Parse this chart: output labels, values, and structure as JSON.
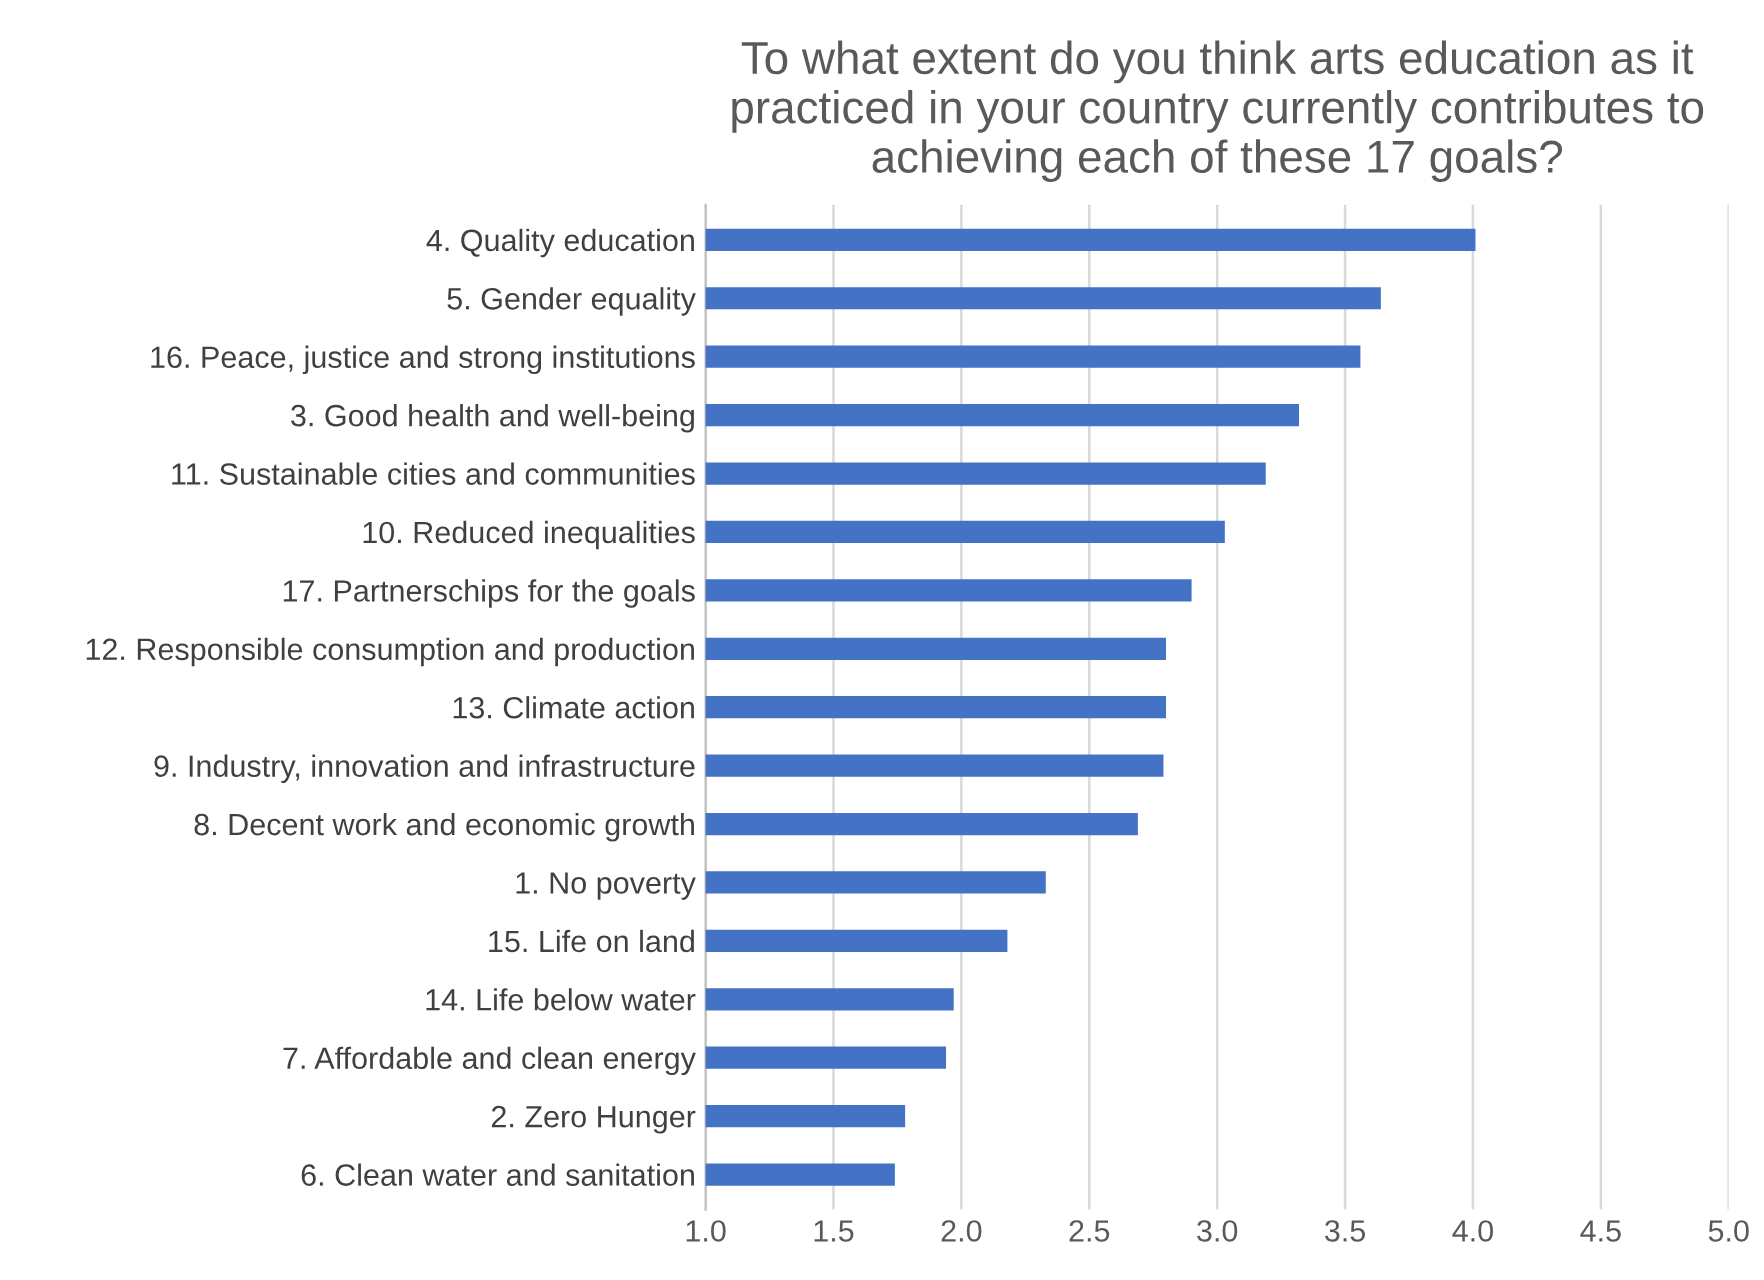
{
  "chart_data": {
    "type": "bar",
    "orientation": "horizontal",
    "title": "To what extent do you think arts education as it practiced in your country currently contributes to achieving each of these 17 goals?",
    "categories": [
      "4. Quality education",
      "5. Gender equality",
      "16. Peace, justice and strong institutions",
      "3. Good health and well-being",
      "11. Sustainable cities and communities",
      "10. Reduced inequalities",
      "17. Partnerschips for the goals",
      "12. Responsible consumption and production",
      "13. Climate action",
      "9. Industry, innovation and infrastructure",
      "8. Decent work and economic growth",
      "1. No poverty",
      "15. Life on land",
      "14. Life below water",
      "7. Affordable and clean energy",
      "2. Zero Hunger",
      "6. Clean water and sanitation"
    ],
    "values": [
      4.01,
      3.64,
      3.56,
      3.32,
      3.19,
      3.03,
      2.9,
      2.8,
      2.8,
      2.79,
      2.69,
      2.33,
      2.18,
      1.97,
      1.94,
      1.78,
      1.74
    ],
    "color": "#4472c4",
    "xlim": [
      1,
      5
    ],
    "xticks": [
      {
        "value": 1,
        "label": "1.0"
      },
      {
        "value": 1.5,
        "label": "1.5"
      },
      {
        "value": 2,
        "label": "2.0"
      },
      {
        "value": 2.5,
        "label": "2.5"
      },
      {
        "value": 3,
        "label": "3.0"
      },
      {
        "value": 3.5,
        "label": "3.5"
      },
      {
        "value": 4,
        "label": "4.0"
      },
      {
        "value": 4.5,
        "label": "4.5"
      },
      {
        "value": 5,
        "label": "5.0"
      }
    ],
    "grid": "x",
    "legend": false
  }
}
